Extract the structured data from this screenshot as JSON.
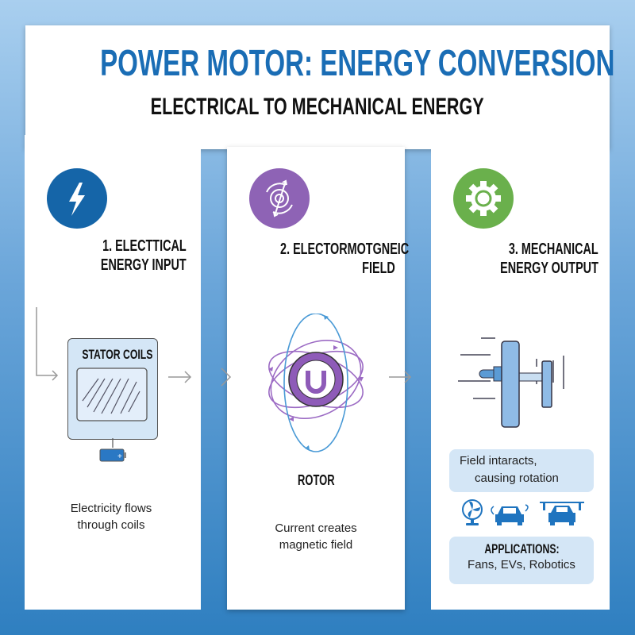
{
  "header": {
    "title": "POWER MOTOR: ENERGY CONVERSION",
    "subtitle": "ELECTRICAL TO MECHANICAL ENERGY"
  },
  "colors": {
    "title": "#1a6db5",
    "step1": "#1565a8",
    "step2": "#8e63b5",
    "step3": "#6ab04c",
    "panel_fill": "#d4e6f6"
  },
  "steps": [
    {
      "icon": "lightning-bolt-icon",
      "heading_line1": "1.  ELECTTICAL",
      "heading_line2": "ENERGY INPUT",
      "diagram_label": "STATOR COILS",
      "description_line1": "Electricity flows",
      "description_line2": "through coils"
    },
    {
      "icon": "magnetic-field-icon",
      "heading_line1": "2.  ELECTORMOTGNEIC",
      "heading_line2": "FIELD",
      "diagram_label": "ROTOR",
      "description_line1": "Current creates",
      "description_line2": "magnetic field"
    },
    {
      "icon": "gear-icon",
      "heading_line1": "3.  MECHANICAL",
      "heading_line2": "ENERGY OUTPUT",
      "note_line1": "Field intaracts,",
      "note_line2": "causing rotation",
      "applications_title": "APPLICATIONS:",
      "applications_list": "Fans, EVs, Robotics",
      "application_icons": [
        "fan-icon",
        "electric-car-icon",
        "robotic-car-icon"
      ]
    }
  ]
}
